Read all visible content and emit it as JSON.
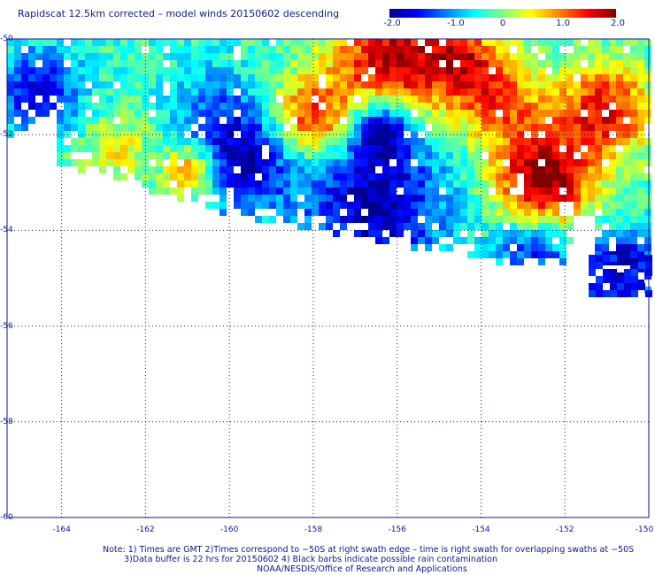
{
  "title": "Rapidscat 12.5km corrected – model winds 20150602 descending",
  "colorbar": {
    "ticks": [
      "-2.0",
      "-1.0",
      "0",
      "1.0",
      "2.0"
    ],
    "range": [
      -2.0,
      2.0
    ],
    "colors": [
      "#00008f",
      "#0000ff",
      "#0080ff",
      "#00ffff",
      "#80ff80",
      "#ffff00",
      "#ff8000",
      "#ff0000",
      "#800000"
    ]
  },
  "axes": {
    "lat_labels": [
      "-50",
      "-52",
      "-54",
      "-56",
      "-58",
      "-60"
    ],
    "lon_labels": [
      "-164",
      "-162",
      "-160",
      "-158",
      "-156",
      "-154",
      "-152",
      "-150"
    ],
    "lat_range": [
      -60,
      -50
    ],
    "lon_range": [
      -165.3,
      -150
    ]
  },
  "notes": [
    "Note: 1) Times are GMT 2)Times correspond to −50S at right swath edge – time is right swath for overlapping swaths at −50S",
    "3)Data buffer is 22 hrs for 20150602 4) Black barbs indicate possible rain contamination",
    "NOAA/NESDIS/Office of Research and Applications"
  ]
}
